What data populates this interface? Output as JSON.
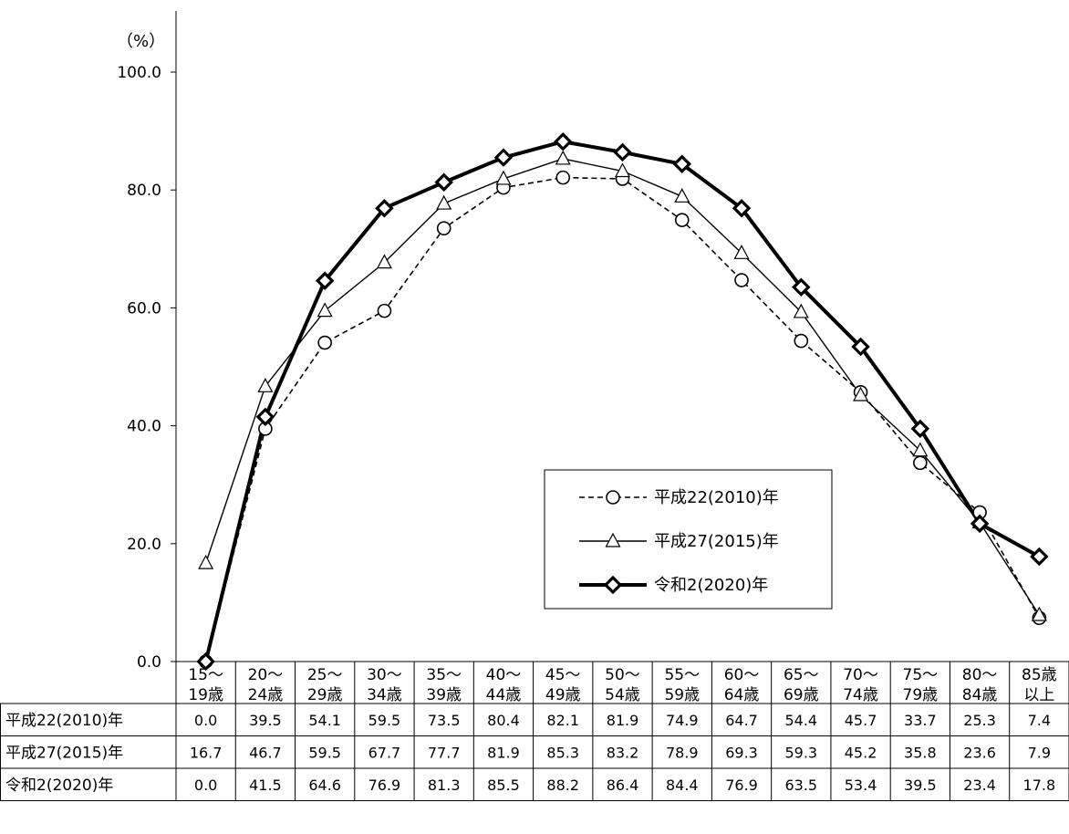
{
  "chart_data": {
    "type": "line",
    "ylabel": "（%）",
    "ylim": [
      0,
      100
    ],
    "yticks": [
      "0.0",
      "20.0",
      "40.0",
      "60.0",
      "80.0",
      "100.0"
    ],
    "categories": [
      [
        "15～",
        "19歳"
      ],
      [
        "20～",
        "24歳"
      ],
      [
        "25～",
        "29歳"
      ],
      [
        "30～",
        "34歳"
      ],
      [
        "35～",
        "39歳"
      ],
      [
        "40～",
        "44歳"
      ],
      [
        "45～",
        "49歳"
      ],
      [
        "50～",
        "54歳"
      ],
      [
        "55～",
        "59歳"
      ],
      [
        "60～",
        "64歳"
      ],
      [
        "65～",
        "69歳"
      ],
      [
        "70～",
        "74歳"
      ],
      [
        "75～",
        "79歳"
      ],
      [
        "80～",
        "84歳"
      ],
      [
        "85歳",
        "以上"
      ]
    ],
    "series": [
      {
        "name": "平成22(2010)年",
        "marker": "circle",
        "line": "dashed",
        "values": [
          0.0,
          39.5,
          54.1,
          59.5,
          73.5,
          80.4,
          82.1,
          81.9,
          74.9,
          64.7,
          54.4,
          45.7,
          33.7,
          25.3,
          7.4
        ]
      },
      {
        "name": "平成27(2015)年",
        "marker": "triangle",
        "line": "thin",
        "values": [
          16.7,
          46.7,
          59.5,
          67.7,
          77.7,
          81.9,
          85.3,
          83.2,
          78.9,
          69.3,
          59.3,
          45.2,
          35.8,
          23.6,
          7.9
        ]
      },
      {
        "name": "令和2(2020)年",
        "marker": "diamond",
        "line": "thick",
        "values": [
          0.0,
          41.5,
          64.6,
          76.9,
          81.3,
          85.5,
          88.2,
          86.4,
          84.4,
          76.9,
          63.5,
          53.4,
          39.5,
          23.4,
          17.8
        ]
      }
    ],
    "table_values": [
      [
        "0.0",
        "39.5",
        "54.1",
        "59.5",
        "73.5",
        "80.4",
        "82.1",
        "81.9",
        "74.9",
        "64.7",
        "54.4",
        "45.7",
        "33.7",
        "25.3",
        "7.4"
      ],
      [
        "16.7",
        "46.7",
        "59.5",
        "67.7",
        "77.7",
        "81.9",
        "85.3",
        "83.2",
        "78.9",
        "69.3",
        "59.3",
        "45.2",
        "35.8",
        "23.6",
        "7.9"
      ],
      [
        "0.0",
        "41.5",
        "64.6",
        "76.9",
        "81.3",
        "85.5",
        "88.2",
        "86.4",
        "84.4",
        "76.9",
        "63.5",
        "53.4",
        "39.5",
        "23.4",
        "17.8"
      ]
    ],
    "legend_position": "right-middle",
    "grid": false,
    "data_table": true
  }
}
